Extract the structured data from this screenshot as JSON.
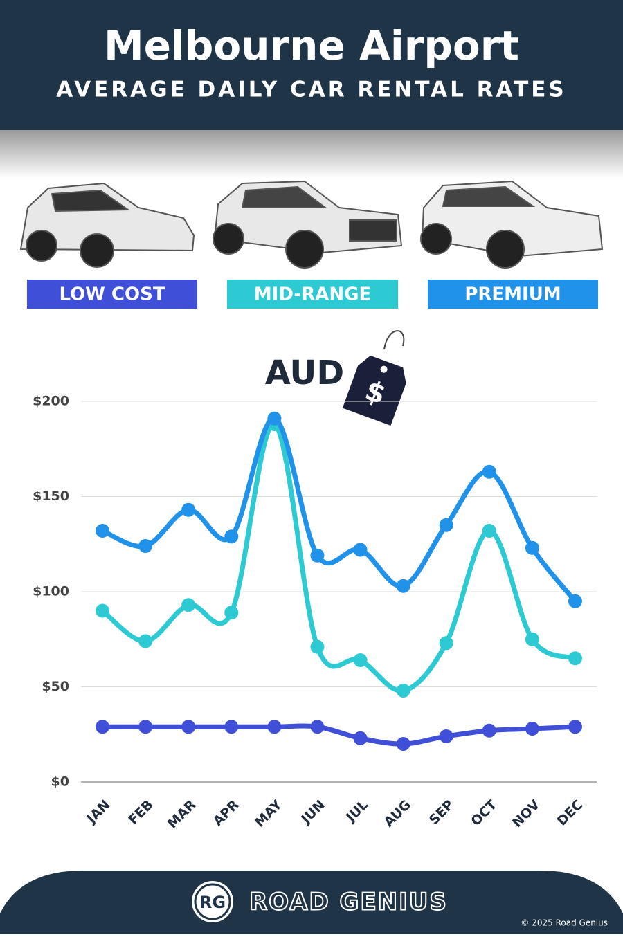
{
  "chart_data": {
    "type": "line",
    "title": "Melbourne Airport",
    "subtitle": "AVERAGE DAILY CAR RENTAL RATES",
    "unit_label": "AUD",
    "tag_symbol": "$",
    "categories": [
      "JAN",
      "FEB",
      "MAR",
      "APR",
      "MAY",
      "JUN",
      "JUL",
      "AUG",
      "SEP",
      "OCT",
      "NOV",
      "DEC"
    ],
    "series": [
      {
        "name": "LOW COST",
        "color": "#3f4fd8",
        "values": [
          29,
          29,
          29,
          29,
          29,
          29,
          23,
          20,
          24,
          27,
          28,
          29
        ]
      },
      {
        "name": "MID-RANGE",
        "color": "#2ecad3",
        "values": [
          90,
          74,
          93,
          89,
          188,
          71,
          64,
          48,
          73,
          132,
          75,
          65
        ]
      },
      {
        "name": "PREMIUM",
        "color": "#2192ea",
        "values": [
          132,
          124,
          143,
          129,
          191,
          119,
          122,
          103,
          135,
          163,
          123,
          95
        ]
      }
    ],
    "ylim": [
      0,
      200
    ],
    "yticks": [
      {
        "value": 0,
        "label": "$0"
      },
      {
        "value": 50,
        "label": "$50"
      },
      {
        "value": 100,
        "label": "$100"
      },
      {
        "value": 150,
        "label": "$150"
      },
      {
        "value": 200,
        "label": "$200"
      }
    ],
    "grid": true
  },
  "footer": {
    "logo": "RG",
    "brand": "ROAD GENIUS",
    "copyright": "© 2025 Road Genius"
  }
}
